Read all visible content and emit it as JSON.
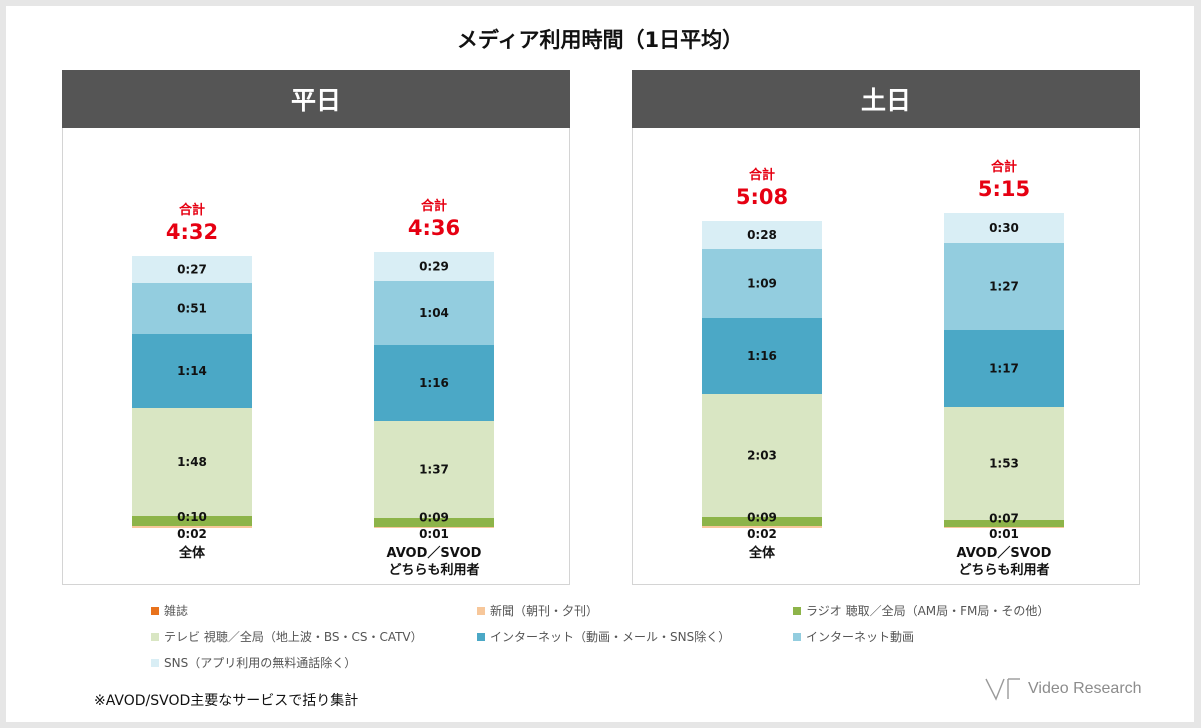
{
  "title": "メディア利用時間（1日平均）",
  "colors": {
    "zasshi": "#e8721c",
    "shinbun": "#f7c79a",
    "radio": "#8db449",
    "tv": "#d9e6c3",
    "net": "#4ba8c6",
    "douga": "#93cddf",
    "sns": "#d9eef5"
  },
  "chart_data": [
    {
      "type": "bar",
      "title": "平日",
      "total_label": "合計",
      "categories": [
        "全体",
        "AVOD／SVOD\nどちらも利用者"
      ],
      "series": [
        {
          "name": "雑誌",
          "key": "zasshi",
          "values": [
            0,
            0
          ],
          "labels": [
            "",
            ""
          ]
        },
        {
          "name": "新聞（朝刊・夕刊）",
          "key": "shinbun",
          "values": [
            2,
            1
          ],
          "labels": [
            "0:02",
            "0:01"
          ]
        },
        {
          "name": "ラジオ 聴取／全局（AM局・FM局・その他）",
          "key": "radio",
          "values": [
            10,
            9
          ],
          "labels": [
            "0:10",
            "0:09"
          ]
        },
        {
          "name": "テレビ 視聴／全局（地上波・BS・CS・CATV）",
          "key": "tv",
          "values": [
            108,
            97
          ],
          "labels": [
            "1:48",
            "1:37"
          ]
        },
        {
          "name": "インターネット（動画・メール・SNS除く）",
          "key": "net",
          "values": [
            74,
            76
          ],
          "labels": [
            "1:14",
            "1:16"
          ]
        },
        {
          "name": "インターネット動画",
          "key": "douga",
          "values": [
            51,
            64
          ],
          "labels": [
            "0:51",
            "1:04"
          ]
        },
        {
          "name": "SNS（アプリ利用の無料通話除く）",
          "key": "sns",
          "values": [
            27,
            29
          ],
          "labels": [
            "0:27",
            "0:29"
          ]
        }
      ],
      "totals": [
        "4:32",
        "4:36"
      ]
    },
    {
      "type": "bar",
      "title": "土日",
      "total_label": "合計",
      "categories": [
        "全体",
        "AVOD／SVOD\nどちらも利用者"
      ],
      "series": [
        {
          "name": "雑誌",
          "key": "zasshi",
          "values": [
            0,
            0
          ],
          "labels": [
            "",
            ""
          ]
        },
        {
          "name": "新聞（朝刊・夕刊）",
          "key": "shinbun",
          "values": [
            2,
            1
          ],
          "labels": [
            "0:02",
            "0:01"
          ]
        },
        {
          "name": "ラジオ 聴取／全局（AM局・FM局・その他）",
          "key": "radio",
          "values": [
            9,
            7
          ],
          "labels": [
            "0:09",
            "0:07"
          ]
        },
        {
          "name": "テレビ 視聴／全局（地上波・BS・CS・CATV）",
          "key": "tv",
          "values": [
            123,
            113
          ],
          "labels": [
            "2:03",
            "1:53"
          ]
        },
        {
          "name": "インターネット（動画・メール・SNS除く）",
          "key": "net",
          "values": [
            76,
            77
          ],
          "labels": [
            "1:16",
            "1:17"
          ]
        },
        {
          "name": "インターネット動画",
          "key": "douga",
          "values": [
            69,
            87
          ],
          "labels": [
            "1:09",
            "1:27"
          ]
        },
        {
          "name": "SNS（アプリ利用の無料通話除く）",
          "key": "sns",
          "values": [
            28,
            30
          ],
          "labels": [
            "0:28",
            "0:30"
          ]
        }
      ],
      "totals": [
        "5:08",
        "5:15"
      ]
    }
  ],
  "legend": [
    {
      "label": "雑誌",
      "key": "zasshi"
    },
    {
      "label": "新聞（朝刊・夕刊）",
      "key": "shinbun"
    },
    {
      "label": "ラジオ 聴取／全局（AM局・FM局・その他）",
      "key": "radio"
    },
    {
      "label": "テレビ 視聴／全局（地上波・BS・CS・CATV）",
      "key": "tv"
    },
    {
      "label": "インターネット（動画・メール・SNS除く）",
      "key": "net"
    },
    {
      "label": "インターネット動画",
      "key": "douga"
    },
    {
      "label": "SNS（アプリ利用の無料通話除く）",
      "key": "sns"
    }
  ],
  "footnote": "※AVOD/SVOD主要なサービスで括り集計",
  "brand": "Video Research"
}
